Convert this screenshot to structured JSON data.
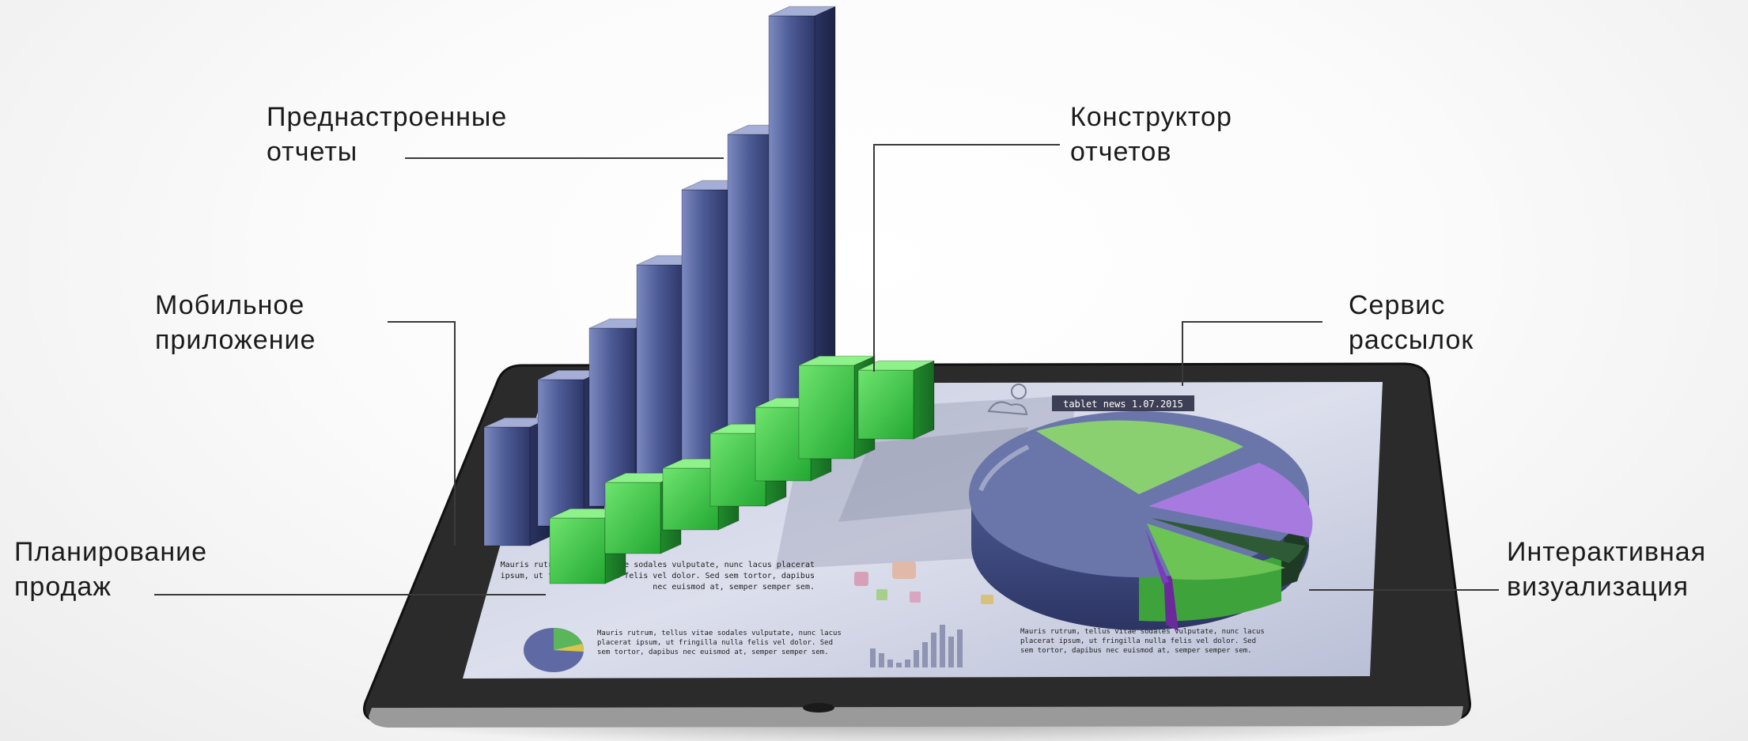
{
  "callouts": {
    "prebuilt_reports": {
      "line1": "Преднастроенные",
      "line2": "отчеты"
    },
    "report_builder": {
      "line1": "Конструктор",
      "line2": "отчетов"
    },
    "mobile_app": {
      "line1": "Мобильное",
      "line2": "приложение"
    },
    "mailing_service": {
      "line1": "Сервис",
      "line2": "рассылок"
    },
    "sales_planning": {
      "line1": "Планирование",
      "line2": "продаж"
    },
    "interactive_visualization": {
      "line1": "Интерактивная",
      "line2": "визуализация"
    }
  },
  "tablet_screen": {
    "header_tag": "tablet news 1.07.2015",
    "text_block_1": "Mauris rutrum, tellus vitae sodales vulputate, nunc lacus placerat ipsum, ut fringilla nulla felis vel dolor. Sed sem tortor, dapibus nec euismod at, semper semper sem.",
    "text_block_2": "Mauris rutrum, tellus vitae sodales vulputate, nunc lacus placerat ipsum, ut fringilla nulla felis vel dolor. Sed sem tortor, dapibus nec euismod at, semper semper sem.",
    "text_block_3": "Mauris rutrum, tellus vitae sodales vulputate, nunc lacus placerat ipsum, ut fringilla nulla felis vel dolor. Sed sem tortor, dapibus nec euismod at, semper semper sem."
  },
  "colors": {
    "blue_bar": "#4a5a92",
    "green_bar": "#3ec64a",
    "pie_blue": "#6a76aa",
    "pie_green": "#6cc455",
    "pie_purple": "#9b62d6",
    "pie_dark_green": "#2e5a38",
    "tablet_frame": "#2a2a2a",
    "leader_line": "#3a3a3a"
  }
}
